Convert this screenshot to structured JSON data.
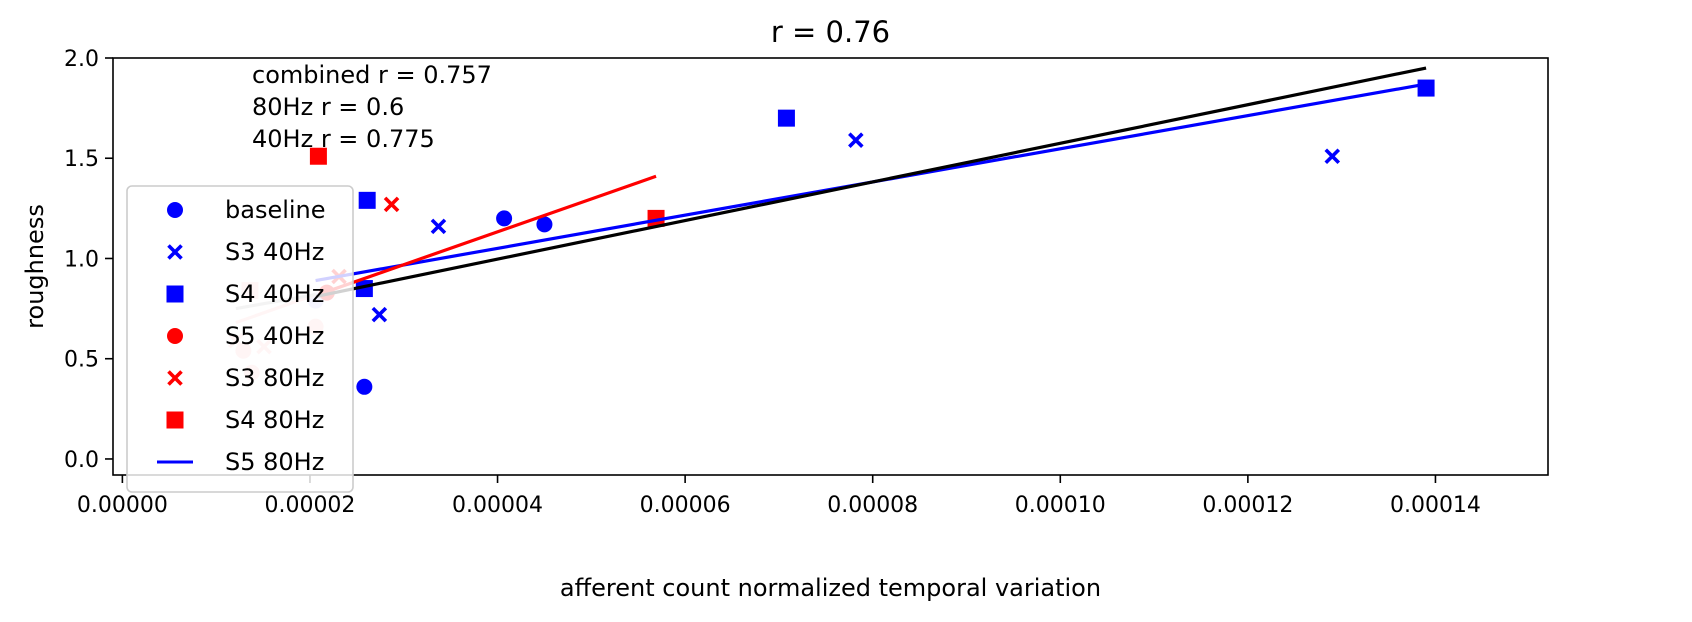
{
  "chart_data": {
    "type": "scatter",
    "title": "r = 0.76",
    "xlabel": "afferent count normalized temporal variation",
    "ylabel": "roughness",
    "xlim": [
      -1e-06,
      0.000152
    ],
    "ylim": [
      -0.08,
      2.0
    ],
    "xticks": [
      "0.00000",
      "0.00002",
      "0.00004",
      "0.00006",
      "0.00008",
      "0.00010",
      "0.00012",
      "0.00014"
    ],
    "xtick_values": [
      0,
      2e-05,
      4e-05,
      6e-05,
      8e-05,
      0.0001,
      0.00012,
      0.00014
    ],
    "yticks": [
      "0.0",
      "0.5",
      "1.0",
      "1.5",
      "2.0"
    ],
    "ytick_values": [
      0,
      0.5,
      1.0,
      1.5,
      2.0
    ],
    "grid": false,
    "legend_position": "left",
    "annotations": [
      "combined r = 0.757",
      "80Hz r = 0.6",
      "40Hz r = 0.775"
    ],
    "colors": {
      "blue": "#0000ff",
      "red": "#ff0000",
      "black": "#000000",
      "faint_red": "#ffc8c8",
      "faint_blue": "#c8c8ff",
      "grey": "#bebebe"
    },
    "series": [
      {
        "name": "baseline",
        "marker": "circle",
        "color": "#0000ff",
        "x": [
          2.58e-05,
          4.07e-05,
          4.5e-05
        ],
        "y": [
          0.36,
          1.2,
          1.17
        ]
      },
      {
        "name": "S3 40Hz",
        "marker": "x",
        "color": "#0000ff",
        "x": [
          2.74e-05,
          3.37e-05,
          7.82e-05,
          0.000129
        ],
        "y": [
          0.72,
          1.16,
          1.59,
          1.51
        ]
      },
      {
        "name": "S4 40Hz",
        "marker": "square",
        "color": "#0000ff",
        "x": [
          2.58e-05,
          2.61e-05,
          7.08e-05,
          0.000139
        ],
        "y": [
          0.85,
          1.29,
          1.7,
          1.85
        ]
      },
      {
        "name": "S5 40Hz",
        "marker": "circle",
        "color": "#ff0000",
        "x": [
          2.18e-05
        ],
        "y": [
          0.83
        ]
      },
      {
        "name": "S3 80Hz",
        "marker": "x",
        "color": "#ff0000",
        "x": [
          2.31e-05,
          2.87e-05
        ],
        "y": [
          0.91,
          1.27
        ]
      },
      {
        "name": "S4 80Hz",
        "marker": "square",
        "color": "#ff0000",
        "x": [
          2.09e-05,
          5.69e-05
        ],
        "y": [
          1.51,
          1.2
        ]
      }
    ],
    "faded_points": [
      {
        "marker": "square",
        "color": "#ffc8c8",
        "x": 1.36e-05,
        "y": 0.84
      },
      {
        "marker": "circle",
        "color": "#ffc8c8",
        "x": 2.06e-05,
        "y": 0.66
      },
      {
        "marker": "x",
        "color": "#ffc8c8",
        "x": 1.21e-05,
        "y": 0.59
      },
      {
        "marker": "x",
        "color": "#ffc8c8",
        "x": 1.51e-05,
        "y": 0.56
      },
      {
        "marker": "circle",
        "color": "#ffc8c8",
        "x": 1.29e-05,
        "y": 0.54
      },
      {
        "marker": "circle",
        "color": "#ffc8c8",
        "x": 1.38e-05,
        "y": 0.43
      },
      {
        "marker": "circle",
        "color": "#c8c8ff",
        "x": 2.06e-05,
        "y": 0.79
      }
    ],
    "fit_lines": [
      {
        "name": "S5 80Hz",
        "color": "#0000ff",
        "x": [
          2.06e-05,
          0.000139
        ],
        "y": [
          0.89,
          1.87
        ]
      },
      {
        "color": "#ff0000",
        "x": [
          2.09e-05,
          5.69e-05
        ],
        "y": [
          0.82,
          1.41
        ]
      },
      {
        "color": "#000000",
        "x": [
          2.06e-05,
          0.000139
        ],
        "y": [
          0.81,
          1.95
        ]
      },
      {
        "color": "#ffc8c8",
        "x": [
          1.21e-05,
          2.06e-05
        ],
        "y": [
          0.68,
          0.82
        ]
      },
      {
        "color": "#bebebe",
        "x": [
          1.21e-05,
          2.06e-05
        ],
        "y": [
          0.75,
          0.82
        ]
      }
    ],
    "legend": [
      {
        "label": "baseline",
        "marker": "circle",
        "color": "#0000ff"
      },
      {
        "label": "S3 40Hz",
        "marker": "x",
        "color": "#0000ff"
      },
      {
        "label": "S4 40Hz",
        "marker": "square",
        "color": "#0000ff"
      },
      {
        "label": "S5 40Hz",
        "marker": "circle",
        "color": "#ff0000"
      },
      {
        "label": "S3 80Hz",
        "marker": "x",
        "color": "#ff0000"
      },
      {
        "label": "S4 80Hz",
        "marker": "square",
        "color": "#ff0000"
      },
      {
        "label": "S5 80Hz",
        "marker": "line",
        "color": "#0000ff"
      }
    ]
  }
}
